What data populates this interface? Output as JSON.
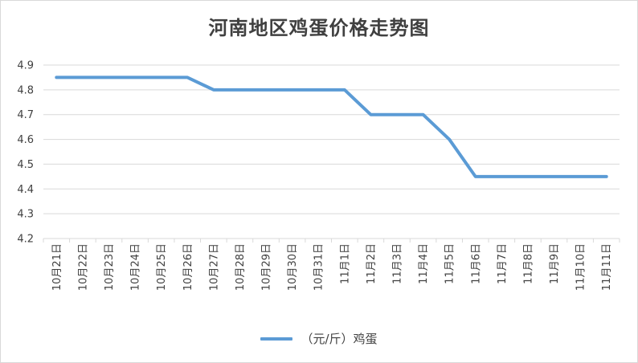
{
  "chart_data": {
    "type": "line",
    "title": "河南地区鸡蛋价格走势图",
    "categories": [
      "10月21日",
      "10月22日",
      "10月23日",
      "10月24日",
      "10月25日",
      "10月26日",
      "10月27日",
      "10月28日",
      "10月29日",
      "10月30日",
      "10月31日",
      "11月1日",
      "11月2日",
      "11月3日",
      "11月4日",
      "11月5日",
      "11月6日",
      "11月7日",
      "11月8日",
      "11月9日",
      "11月10日",
      "11月11日"
    ],
    "series": [
      {
        "name": "（元/斤）鸡蛋",
        "values": [
          4.85,
          4.85,
          4.85,
          4.85,
          4.85,
          4.85,
          4.8,
          4.8,
          4.8,
          4.8,
          4.8,
          4.8,
          4.7,
          4.7,
          4.7,
          4.6,
          4.45,
          4.45,
          4.45,
          4.45,
          4.45,
          4.45
        ],
        "color": "#5b9bd5"
      }
    ],
    "ylim": [
      4.2,
      4.9
    ],
    "yticks": [
      "4.2",
      "4.3",
      "4.4",
      "4.5",
      "4.6",
      "4.7",
      "4.8",
      "4.9"
    ],
    "grid": true,
    "legend_position": "bottom",
    "xlabel": "",
    "ylabel": ""
  },
  "colors": {
    "series": "#5b9bd5",
    "grid": "#d9d9d9",
    "text": "#404040"
  }
}
